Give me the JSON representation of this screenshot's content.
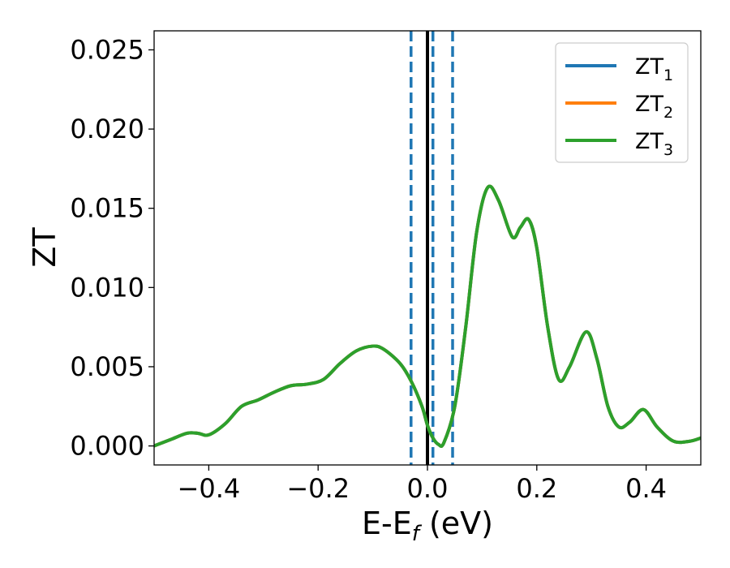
{
  "chart_data": {
    "type": "line",
    "xlabel_main": "E-E",
    "xlabel_sub": "f",
    "xlabel_unit": " (eV)",
    "ylabel": "ZT",
    "xlim": [
      -0.5,
      0.5
    ],
    "ylim": [
      -0.0012,
      0.0262
    ],
    "x_ticks": [
      -0.4,
      -0.2,
      0.0,
      0.2,
      0.4
    ],
    "x_tick_labels": [
      "−0.4",
      "−0.2",
      "0.0",
      "0.2",
      "0.4"
    ],
    "y_ticks": [
      0.0,
      0.005,
      0.01,
      0.015,
      0.02,
      0.025
    ],
    "y_tick_labels": [
      "0.000",
      "0.005",
      "0.010",
      "0.015",
      "0.020",
      "0.025"
    ],
    "vertical_lines": [
      {
        "x": -0.03,
        "style": "dashed",
        "color": "#1f77b4"
      },
      {
        "x": 0.0,
        "style": "solid",
        "color": "#000000"
      },
      {
        "x": 0.01,
        "style": "dashed",
        "color": "#1f77b4"
      },
      {
        "x": 0.046,
        "style": "dashed",
        "color": "#1f77b4"
      }
    ],
    "legend_position": "top-right",
    "x": [
      -0.5,
      -0.47,
      -0.44,
      -0.42,
      -0.4,
      -0.37,
      -0.34,
      -0.31,
      -0.28,
      -0.25,
      -0.22,
      -0.19,
      -0.16,
      -0.13,
      -0.1,
      -0.08,
      -0.05,
      -0.03,
      -0.01,
      0.0,
      0.01,
      0.02,
      0.03,
      0.05,
      0.07,
      0.09,
      0.11,
      0.13,
      0.155,
      0.17,
      0.185,
      0.2,
      0.22,
      0.24,
      0.26,
      0.29,
      0.31,
      0.33,
      0.35,
      0.37,
      0.395,
      0.42,
      0.45,
      0.48,
      0.5
    ],
    "series": [
      {
        "name_main": "ZT",
        "name_sub": "1",
        "color": "#1f77b4",
        "values": [
          0.0,
          0.0004,
          0.0008,
          0.0008,
          0.0007,
          0.0014,
          0.0025,
          0.0029,
          0.0034,
          0.0038,
          0.0039,
          0.0042,
          0.0052,
          0.006,
          0.0063,
          0.0061,
          0.0052,
          0.0041,
          0.0025,
          0.0013,
          0.0005,
          0.0001,
          0.0002,
          0.0025,
          0.0075,
          0.0135,
          0.0163,
          0.0155,
          0.0132,
          0.0138,
          0.0143,
          0.0125,
          0.0075,
          0.0042,
          0.005,
          0.0072,
          0.0055,
          0.0025,
          0.0012,
          0.0015,
          0.0023,
          0.0012,
          0.0003,
          0.0003,
          0.0005
        ]
      },
      {
        "name_main": "ZT",
        "name_sub": "2",
        "color": "#ff7f0e",
        "values": [
          0.0,
          0.0004,
          0.0008,
          0.0008,
          0.0007,
          0.0014,
          0.0025,
          0.0029,
          0.0034,
          0.0038,
          0.0039,
          0.0042,
          0.0052,
          0.006,
          0.0063,
          0.0061,
          0.0052,
          0.0041,
          0.0025,
          0.0013,
          0.0005,
          0.0001,
          0.0002,
          0.0025,
          0.0075,
          0.0135,
          0.0163,
          0.0155,
          0.0132,
          0.0138,
          0.0143,
          0.0125,
          0.0075,
          0.0042,
          0.005,
          0.0072,
          0.0055,
          0.0025,
          0.0012,
          0.0015,
          0.0023,
          0.0012,
          0.0003,
          0.0003,
          0.0005
        ]
      },
      {
        "name_main": "ZT",
        "name_sub": "3",
        "color": "#2ca02c",
        "values": [
          0.0,
          0.0004,
          0.0008,
          0.0008,
          0.0007,
          0.0014,
          0.0025,
          0.0029,
          0.0034,
          0.0038,
          0.0039,
          0.0042,
          0.0052,
          0.006,
          0.0063,
          0.0061,
          0.0052,
          0.0041,
          0.0025,
          0.0013,
          0.0005,
          0.0001,
          0.0002,
          0.0025,
          0.0075,
          0.0135,
          0.0163,
          0.0155,
          0.0132,
          0.0138,
          0.0143,
          0.0125,
          0.0075,
          0.0042,
          0.005,
          0.0072,
          0.0055,
          0.0025,
          0.0012,
          0.0015,
          0.0023,
          0.0012,
          0.0003,
          0.0003,
          0.0005
        ]
      }
    ]
  }
}
